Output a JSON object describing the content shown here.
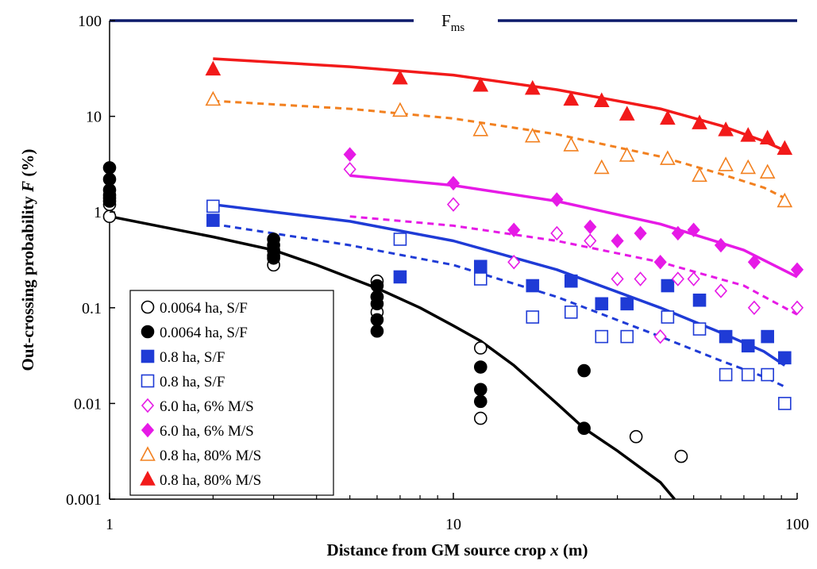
{
  "chart_data": {
    "type": "scatter",
    "title": "",
    "xlabel": {
      "prefix": "Distance from GM source crop ",
      "var": "x",
      "suffix": "  (m)"
    },
    "ylabel": {
      "prefix": "Out-crossing probability  ",
      "var": "F",
      "suffix": "  (%)"
    },
    "x_scale": "log",
    "y_scale": "log",
    "xlim": [
      1,
      100
    ],
    "ylim": [
      0.001,
      100
    ],
    "x_tick_labels": [
      "1",
      "10",
      "100"
    ],
    "x_ticks": [
      1,
      10,
      100
    ],
    "y_tick_labels": [
      "0.001",
      "0.01",
      "0.1",
      "1",
      "10",
      "100"
    ],
    "y_ticks": [
      0.001,
      0.01,
      0.1,
      1,
      10,
      100
    ],
    "grid": false,
    "legend_position": "bottom-left",
    "threshold_line": {
      "label": "F",
      "label_sub": "ms",
      "y": 100,
      "color": "#0d1a6b"
    },
    "series": [
      {
        "name": "0.0064 ha, S/F",
        "marker": "circle",
        "filled": false,
        "color": "#000000",
        "x": [
          1,
          1,
          1,
          3,
          3,
          6,
          6,
          6,
          12,
          12,
          34,
          46
        ],
        "y": [
          0.9,
          1.2,
          1.5,
          0.28,
          0.35,
          0.19,
          0.13,
          0.09,
          0.038,
          0.007,
          0.0045,
          0.0028
        ]
      },
      {
        "name": "0.0064 ha, S/F",
        "marker": "circle",
        "filled": true,
        "color": "#000000",
        "x": [
          1,
          1,
          1,
          1,
          1,
          3,
          3,
          3,
          3,
          6,
          6,
          6,
          6,
          6,
          12,
          12,
          12,
          24,
          24
        ],
        "y": [
          2.9,
          2.2,
          1.7,
          1.4,
          1.3,
          0.52,
          0.45,
          0.4,
          0.33,
          0.17,
          0.13,
          0.11,
          0.075,
          0.057,
          0.024,
          0.014,
          0.0105,
          0.022,
          0.0055
        ]
      },
      {
        "name": "0.8 ha, S/F",
        "marker": "square",
        "filled": true,
        "color": "#1f3bd6",
        "x": [
          2,
          7,
          12,
          17,
          22,
          27,
          32,
          42,
          52,
          62,
          72,
          82,
          92
        ],
        "y": [
          0.82,
          0.21,
          0.27,
          0.17,
          0.19,
          0.11,
          0.11,
          0.17,
          0.12,
          0.05,
          0.04,
          0.05,
          0.03
        ]
      },
      {
        "name": "0.8 ha, S/F",
        "marker": "square",
        "filled": false,
        "color": "#1f3bd6",
        "x": [
          2,
          7,
          12,
          17,
          22,
          27,
          32,
          42,
          52,
          62,
          72,
          82,
          92
        ],
        "y": [
          1.15,
          0.52,
          0.2,
          0.08,
          0.09,
          0.05,
          0.05,
          0.08,
          0.06,
          0.02,
          0.02,
          0.02,
          0.01
        ]
      },
      {
        "name": "6.0 ha, 6% M/S",
        "marker": "diamond",
        "filled": false,
        "color": "#e61ae6",
        "x": [
          5,
          10,
          15,
          20,
          25,
          30,
          35,
          40,
          45,
          50,
          60,
          75,
          100
        ],
        "y": [
          2.8,
          1.2,
          0.3,
          0.6,
          0.5,
          0.2,
          0.2,
          0.05,
          0.2,
          0.2,
          0.15,
          0.1,
          0.1
        ]
      },
      {
        "name": "6.0 ha, 6% M/S",
        "marker": "diamond",
        "filled": true,
        "color": "#e61ae6",
        "x": [
          5,
          10,
          15,
          20,
          25,
          30,
          35,
          40,
          45,
          50,
          60,
          75,
          100
        ],
        "y": [
          4.0,
          2.0,
          0.65,
          1.35,
          0.7,
          0.5,
          0.6,
          0.3,
          0.6,
          0.65,
          0.45,
          0.3,
          0.25
        ]
      },
      {
        "name": "0.8 ha, 80% M/S",
        "marker": "triangle",
        "filled": false,
        "color": "#f2801f",
        "x": [
          2,
          7,
          12,
          17,
          22,
          27,
          32,
          42,
          52,
          62,
          72,
          82,
          92
        ],
        "y": [
          15,
          11.5,
          7.2,
          6.2,
          5.0,
          2.9,
          3.9,
          3.6,
          2.4,
          3.1,
          2.9,
          2.6,
          1.3
        ]
      },
      {
        "name": "0.8 ha, 80% M/S",
        "marker": "triangle",
        "filled": true,
        "color": "#f21a1a",
        "x": [
          2,
          7,
          12,
          17,
          22,
          27,
          32,
          42,
          52,
          62,
          72,
          82,
          92
        ],
        "y": [
          31,
          25,
          21,
          19.5,
          15,
          14.5,
          10.5,
          9.5,
          8.5,
          7.2,
          6.3,
          5.9,
          4.6
        ]
      }
    ],
    "fit_lines": [
      {
        "color": "#000000",
        "dash": false,
        "x": [
          1,
          2,
          3,
          4,
          6,
          8,
          10,
          12,
          15,
          20,
          24,
          30,
          40,
          44
        ],
        "y": [
          0.9,
          0.55,
          0.4,
          0.28,
          0.16,
          0.1,
          0.065,
          0.045,
          0.025,
          0.01,
          0.0055,
          0.0032,
          0.0015,
          0.001
        ]
      },
      {
        "color": "#1f3bd6",
        "dash": false,
        "x": [
          2,
          5,
          10,
          20,
          40,
          60,
          80,
          92
        ],
        "y": [
          1.2,
          0.8,
          0.5,
          0.25,
          0.1,
          0.055,
          0.035,
          0.025
        ]
      },
      {
        "color": "#1f3bd6",
        "dash": true,
        "x": [
          2,
          5,
          10,
          20,
          40,
          60,
          80,
          92
        ],
        "y": [
          0.75,
          0.45,
          0.28,
          0.13,
          0.05,
          0.028,
          0.019,
          0.015
        ]
      },
      {
        "color": "#e61ae6",
        "dash": false,
        "x": [
          5,
          10,
          20,
          40,
          70,
          100
        ],
        "y": [
          2.4,
          1.9,
          1.3,
          0.75,
          0.4,
          0.21
        ]
      },
      {
        "color": "#e61ae6",
        "dash": true,
        "x": [
          5,
          10,
          20,
          40,
          70,
          100
        ],
        "y": [
          0.9,
          0.72,
          0.5,
          0.3,
          0.17,
          0.085
        ]
      },
      {
        "color": "#f2801f",
        "dash": true,
        "x": [
          2,
          5,
          10,
          20,
          40,
          60,
          80,
          92
        ],
        "y": [
          14.5,
          12,
          9.5,
          6.5,
          3.8,
          2.5,
          1.8,
          1.4
        ]
      },
      {
        "color": "#f21a1a",
        "dash": false,
        "x": [
          2,
          5,
          10,
          20,
          40,
          60,
          80,
          92
        ],
        "y": [
          40,
          33,
          27,
          19,
          12,
          8,
          5.5,
          4.4
        ]
      }
    ]
  }
}
